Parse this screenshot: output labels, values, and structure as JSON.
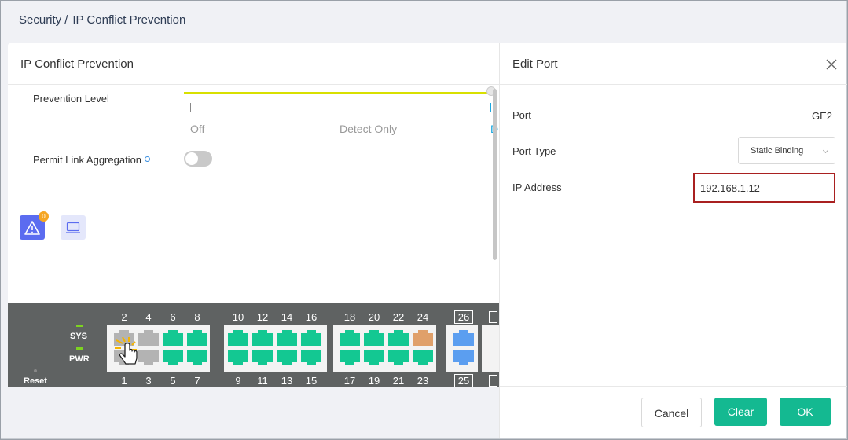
{
  "breadcrumb": {
    "parent": "Security",
    "separator": "/",
    "current": "IP Conflict Prevention"
  },
  "main": {
    "title": "IP Conflict Prevention",
    "prevention_level": {
      "label": "Prevention Level",
      "options": [
        "Off",
        "Detect Only",
        "D"
      ],
      "selected_index": 2
    },
    "permit_link_aggregation": {
      "label": "Permit Link Aggregation",
      "enabled": false
    },
    "alert_badge_count": "0"
  },
  "switch_panel": {
    "labels": {
      "sys": "SYS",
      "pwr": "PWR",
      "reset": "Reset"
    },
    "top_numbers": [
      "2",
      "4",
      "6",
      "8",
      "10",
      "12",
      "14",
      "16",
      "18",
      "20",
      "22",
      "24",
      "26"
    ],
    "bottom_numbers": [
      "1",
      "3",
      "5",
      "7",
      "9",
      "11",
      "13",
      "15",
      "17",
      "19",
      "21",
      "23",
      "25"
    ],
    "colors": {
      "up": "#13c892",
      "down": "#b3b3b3",
      "warning": "#e0a06a",
      "sfp": "#5b9ef0"
    }
  },
  "edit_port": {
    "title": "Edit Port",
    "port_label": "Port",
    "port_value": "GE2",
    "port_type_label": "Port Type",
    "port_type_value": "Static Binding",
    "ip_label": "IP Address",
    "ip_value": "192.168.1.12",
    "buttons": {
      "cancel": "Cancel",
      "clear": "Clear",
      "ok": "OK"
    }
  }
}
